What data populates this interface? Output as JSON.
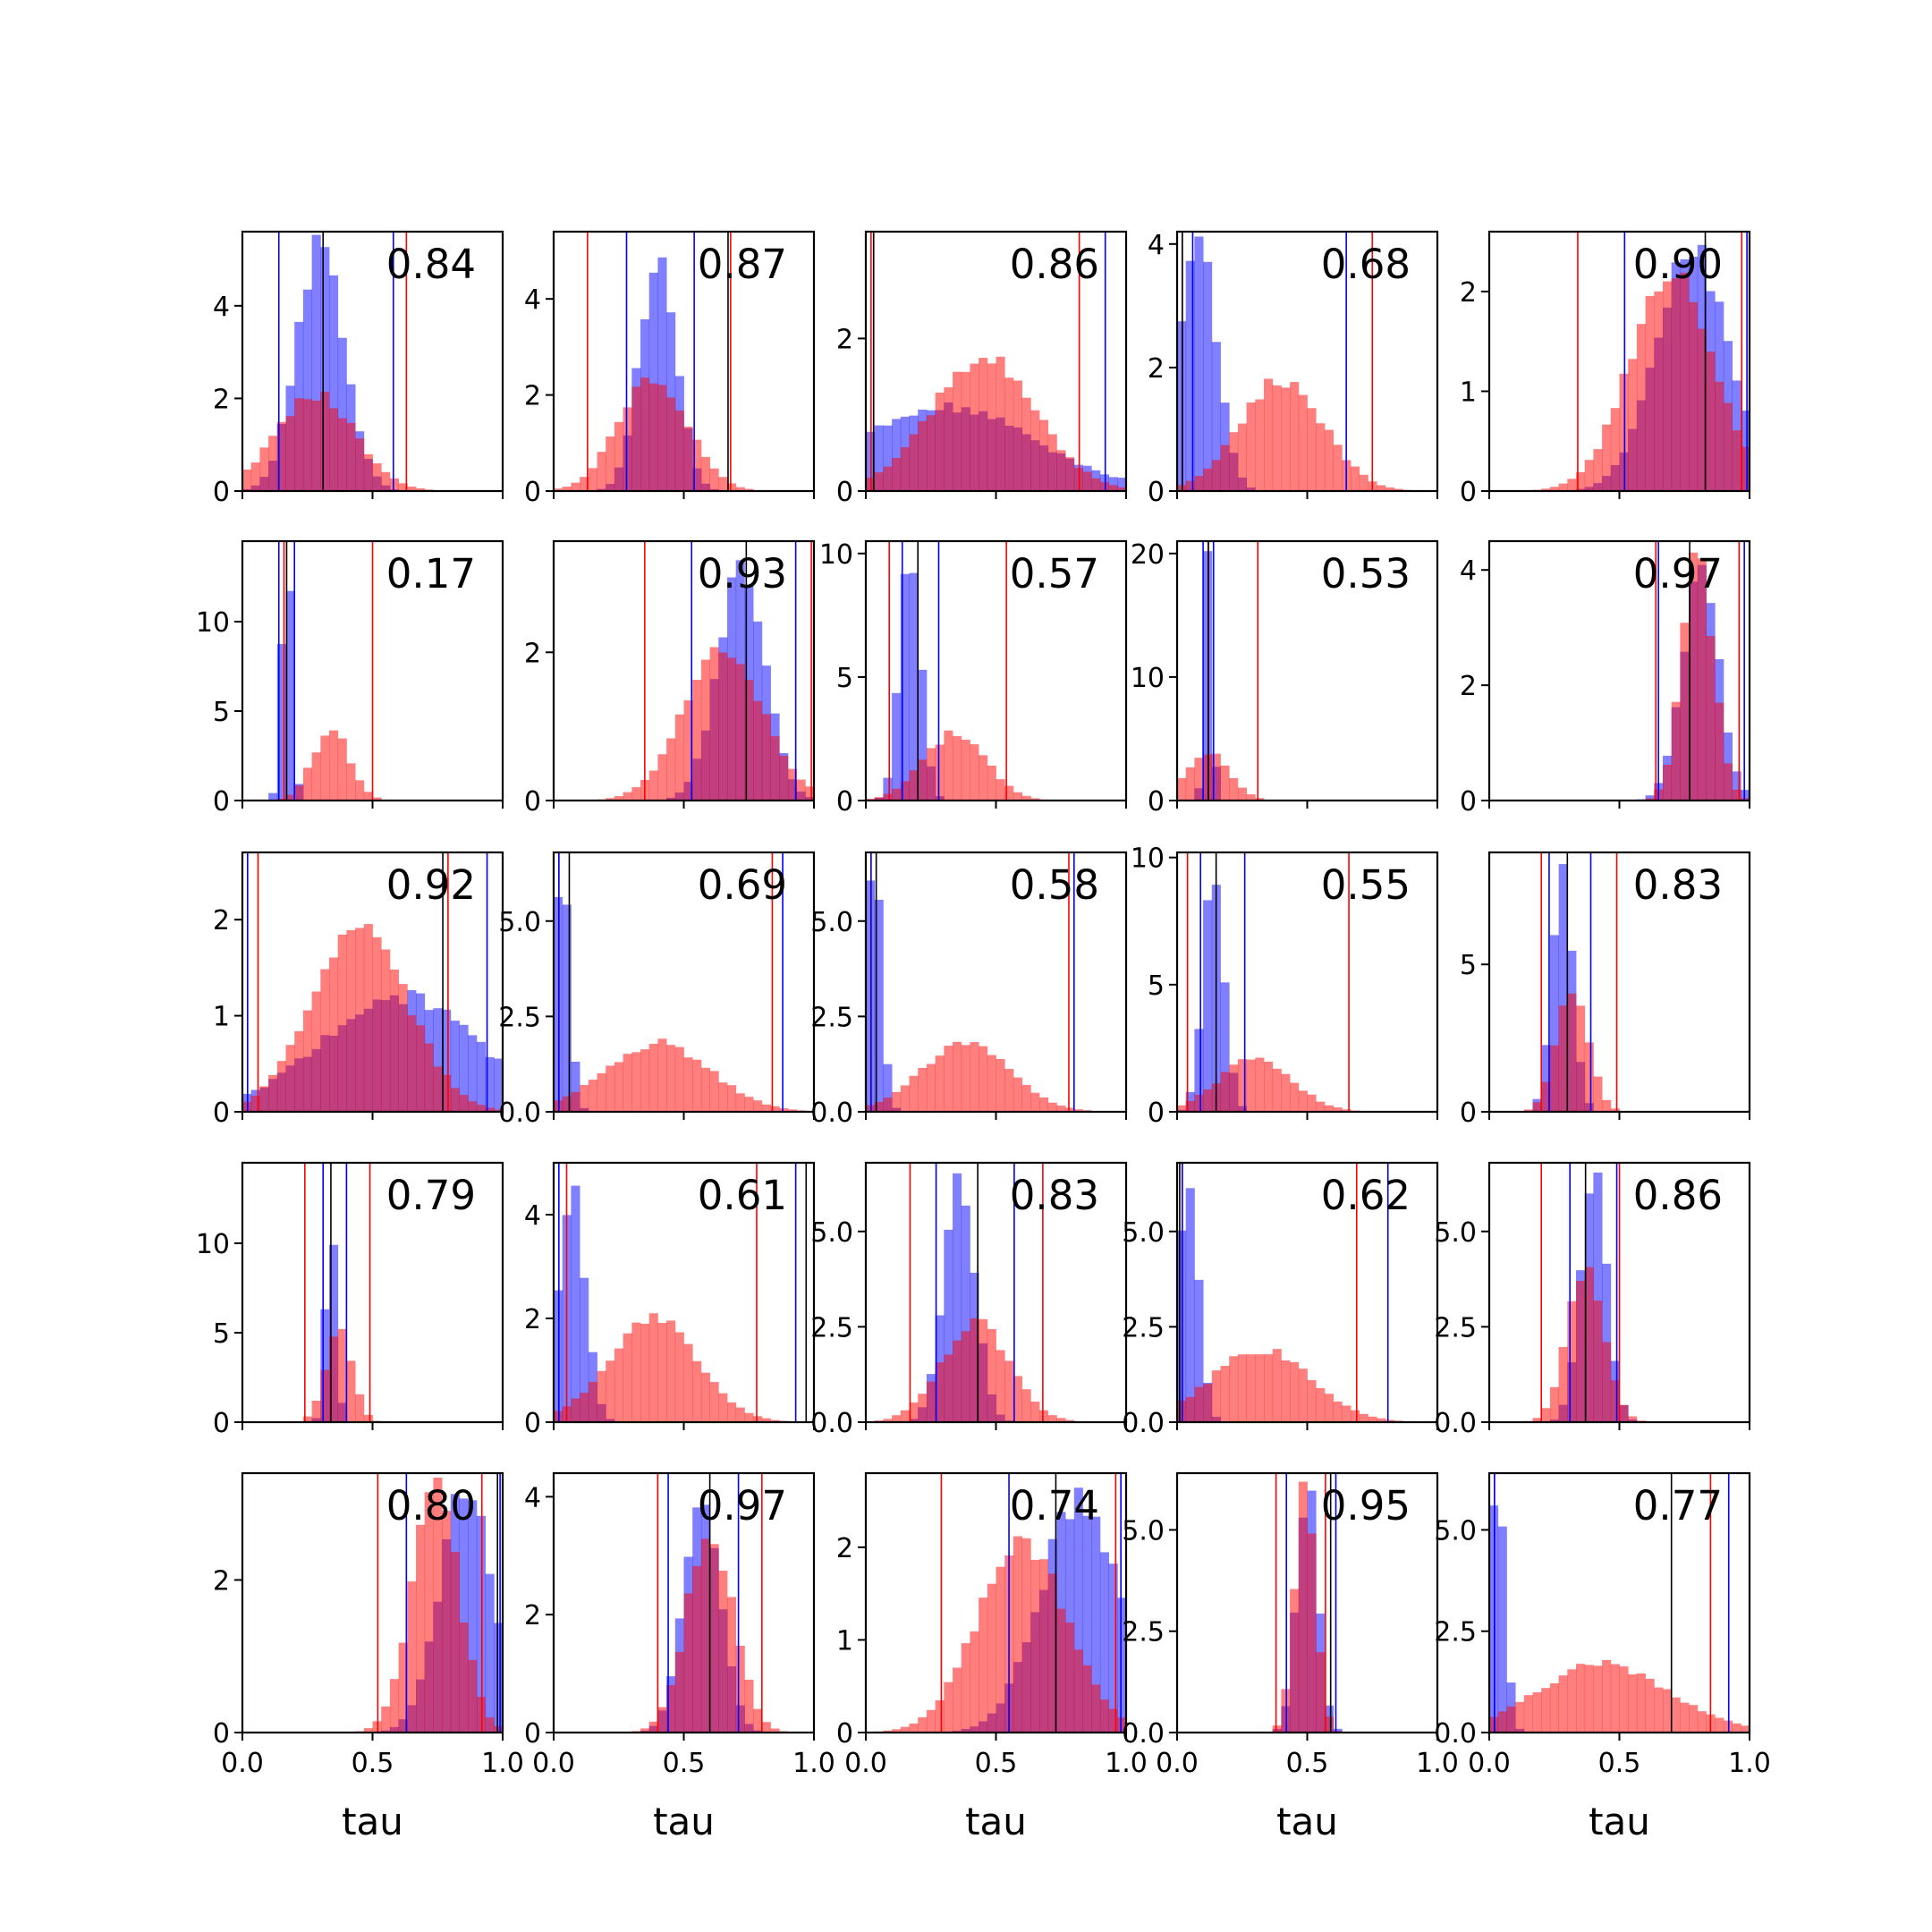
{
  "figure": {
    "colors": {
      "prior": "#ff0000",
      "posterior": "#0000ff",
      "truth": "#000000",
      "overlap": "#bf4080"
    }
  },
  "chart_data": [
    {
      "type": "bar",
      "annotation": "0.84",
      "ylim": [
        0,
        5.6
      ],
      "yticks": [
        0,
        2,
        4
      ],
      "ytick_labels": [
        "0",
        "2",
        "4"
      ],
      "xticks": [
        0,
        0.5,
        1
      ],
      "xtick_labels": [],
      "xlabel": "",
      "xlim": [
        0,
        1
      ],
      "truth": 0.31,
      "blue_lines": [
        0.14,
        0.58
      ],
      "red_lines": [
        0.0,
        0.63
      ],
      "blue_peak": 0.3,
      "blue_width": 0.09,
      "red_peak": 0.28,
      "red_width": 0.15,
      "blue_max": 5.45,
      "red_max": 2.1
    },
    {
      "type": "bar",
      "annotation": "0.87",
      "ylim": [
        0,
        5.4
      ],
      "yticks": [
        0,
        2,
        4
      ],
      "ytick_labels": [
        "0",
        "2",
        "4"
      ],
      "xticks": [
        0,
        0.5,
        1
      ],
      "xtick_labels": [],
      "xlabel": "",
      "xlim": [
        0,
        1
      ],
      "truth": 0.67,
      "blue_lines": [
        0.28,
        0.54
      ],
      "red_lines": [
        0.13,
        0.68
      ],
      "blue_peak": 0.4,
      "blue_width": 0.07,
      "red_peak": 0.38,
      "red_width": 0.13,
      "blue_max": 4.9,
      "red_max": 2.4
    },
    {
      "type": "bar",
      "annotation": "0.86",
      "ylim": [
        0,
        3.4
      ],
      "yticks": [
        0,
        2
      ],
      "ytick_labels": [
        "0",
        "2"
      ],
      "xticks": [
        0,
        0.5,
        1
      ],
      "xtick_labels": [],
      "xlabel": "",
      "xlim": [
        0,
        1
      ],
      "truth": 0.03,
      "blue_lines": [
        0.03,
        0.92
      ],
      "red_lines": [
        0.02,
        0.82
      ],
      "blue_peak": 0.3,
      "blue_width": 0.35,
      "red_peak": 0.45,
      "red_width": 0.2,
      "blue_max": 1.1,
      "red_max": 1.75
    },
    {
      "type": "bar",
      "annotation": "0.68",
      "ylim": [
        0,
        4.2
      ],
      "yticks": [
        0,
        2,
        4
      ],
      "ytick_labels": [
        "0",
        "2",
        "4"
      ],
      "xticks": [
        0,
        0.5,
        1
      ],
      "xtick_labels": [],
      "xlabel": "",
      "xlim": [
        0,
        1
      ],
      "truth": 0.02,
      "blue_lines": [
        0.06,
        0.65
      ],
      "red_lines": [
        0.02,
        0.75
      ],
      "blue_peak": 0.08,
      "blue_width": 0.07,
      "red_peak": 0.4,
      "red_width": 0.16,
      "blue_max": 4.0,
      "red_max": 1.8
    },
    {
      "type": "bar",
      "annotation": "0.90",
      "ylim": [
        0,
        2.6
      ],
      "yticks": [
        0,
        1,
        2
      ],
      "ytick_labels": [
        "0",
        "1",
        "2"
      ],
      "xticks": [
        0,
        0.5,
        1
      ],
      "xtick_labels": [],
      "xlabel": "",
      "xlim": [
        0,
        1
      ],
      "truth": 0.83,
      "blue_lines": [
        0.52,
        0.99
      ],
      "red_lines": [
        0.34,
        0.97
      ],
      "blue_peak": 0.78,
      "blue_width": 0.14,
      "red_peak": 0.7,
      "red_width": 0.16,
      "blue_max": 2.4,
      "red_max": 2.15
    },
    {
      "type": "bar",
      "annotation": "0.17",
      "ylim": [
        0,
        14.5
      ],
      "yticks": [
        0,
        5,
        10
      ],
      "ytick_labels": [
        "0",
        "5",
        "10"
      ],
      "xticks": [
        0,
        0.5,
        1
      ],
      "xtick_labels": [],
      "xlabel": "",
      "xlim": [
        0,
        1
      ],
      "truth": 0.17,
      "blue_lines": [
        0.14,
        0.2
      ],
      "red_lines": [
        0.16,
        0.5
      ],
      "blue_peak": 0.17,
      "blue_width": 0.02,
      "red_peak": 0.34,
      "red_width": 0.07,
      "blue_max": 14.0,
      "red_max": 4.0
    },
    {
      "type": "bar",
      "annotation": "0.93",
      "ylim": [
        0,
        3.5
      ],
      "yticks": [
        0,
        2
      ],
      "ytick_labels": [
        "0",
        "2"
      ],
      "xticks": [
        0,
        0.5,
        1
      ],
      "xtick_labels": [],
      "xlabel": "",
      "xlim": [
        0,
        1
      ],
      "truth": 0.74,
      "blue_lines": [
        0.53,
        0.93
      ],
      "red_lines": [
        0.35,
        0.99
      ],
      "blue_peak": 0.72,
      "blue_width": 0.09,
      "red_peak": 0.65,
      "red_width": 0.15,
      "blue_max": 3.2,
      "red_max": 2.1
    },
    {
      "type": "bar",
      "annotation": "0.57",
      "ylim": [
        0,
        10.5
      ],
      "yticks": [
        0,
        5,
        10
      ],
      "ytick_labels": [
        "0",
        "5",
        "10"
      ],
      "xticks": [
        0,
        0.5,
        1
      ],
      "xtick_labels": [],
      "xlabel": "",
      "xlim": [
        0,
        1
      ],
      "truth": 0.2,
      "blue_lines": [
        0.14,
        0.28
      ],
      "red_lines": [
        0.09,
        0.54
      ],
      "blue_peak": 0.17,
      "blue_width": 0.04,
      "red_peak": 0.34,
      "red_width": 0.12,
      "blue_max": 10.0,
      "red_max": 2.7
    },
    {
      "type": "bar",
      "annotation": "0.53",
      "ylim": [
        0,
        21
      ],
      "yticks": [
        0,
        10,
        20
      ],
      "ytick_labels": [
        "0",
        "10",
        "20"
      ],
      "xticks": [
        0,
        0.5,
        1
      ],
      "xtick_labels": [],
      "xlabel": "",
      "xlim": [
        0,
        1
      ],
      "truth": 0.12,
      "blue_lines": [
        0.1,
        0.14
      ],
      "red_lines": [
        0.12,
        0.31
      ],
      "blue_peak": 0.12,
      "blue_width": 0.015,
      "red_peak": 0.12,
      "red_width": 0.08,
      "blue_max": 20.0,
      "red_max": 4.0
    },
    {
      "type": "bar",
      "annotation": "0.97",
      "ylim": [
        0,
        4.5
      ],
      "yticks": [
        0,
        2,
        4
      ],
      "ytick_labels": [
        "0",
        "2",
        "4"
      ],
      "xticks": [
        0,
        0.5,
        1
      ],
      "xtick_labels": [],
      "xlabel": "",
      "xlim": [
        0,
        1
      ],
      "truth": 0.77,
      "blue_lines": [
        0.65,
        0.98
      ],
      "red_lines": [
        0.64,
        0.96
      ],
      "blue_peak": 0.81,
      "blue_width": 0.07,
      "red_peak": 0.8,
      "red_width": 0.06,
      "blue_max": 4.0,
      "red_max": 4.2
    },
    {
      "type": "bar",
      "annotation": "0.92",
      "ylim": [
        0,
        2.7
      ],
      "yticks": [
        0,
        1,
        2
      ],
      "ytick_labels": [
        "0",
        "1",
        "2"
      ],
      "xticks": [
        0,
        0.5,
        1
      ],
      "xtick_labels": [],
      "xlabel": "",
      "xlim": [
        0,
        1
      ],
      "truth": 0.77,
      "blue_lines": [
        0.02,
        0.94
      ],
      "red_lines": [
        0.06,
        0.79
      ],
      "blue_peak": 0.6,
      "blue_width": 0.3,
      "red_peak": 0.45,
      "red_width": 0.18,
      "blue_max": 1.2,
      "red_max": 2.0
    },
    {
      "type": "bar",
      "annotation": "0.69",
      "ylim": [
        0,
        6.8
      ],
      "yticks": [
        0,
        2.5,
        5.0
      ],
      "ytick_labels": [
        "0.0",
        "2.5",
        "5.0"
      ],
      "xticks": [
        0,
        0.5,
        1
      ],
      "xtick_labels": [],
      "xlabel": "",
      "xlim": [
        0,
        1
      ],
      "truth": 0.06,
      "blue_lines": [
        0.02,
        0.88
      ],
      "red_lines": [
        0.02,
        0.84
      ],
      "blue_peak": 0.03,
      "blue_width": 0.03,
      "red_peak": 0.4,
      "red_width": 0.2,
      "blue_max": 6.5,
      "red_max": 1.8
    },
    {
      "type": "bar",
      "annotation": "0.58",
      "ylim": [
        0,
        6.8
      ],
      "yticks": [
        0,
        2.5,
        5.0
      ],
      "ytick_labels": [
        "0.0",
        "2.5",
        "5.0"
      ],
      "xticks": [
        0,
        0.5,
        1
      ],
      "xtick_labels": [],
      "xlabel": "",
      "xlim": [
        0,
        1
      ],
      "truth": 0.04,
      "blue_lines": [
        0.02,
        0.8
      ],
      "red_lines": [
        0.02,
        0.78
      ],
      "blue_peak": 0.03,
      "blue_width": 0.03,
      "red_peak": 0.38,
      "red_width": 0.17,
      "blue_max": 6.5,
      "red_max": 1.8
    },
    {
      "type": "bar",
      "annotation": "0.55",
      "ylim": [
        0,
        10.2
      ],
      "yticks": [
        0,
        5,
        10
      ],
      "ytick_labels": [
        "0",
        "5",
        "10"
      ],
      "xticks": [
        0,
        0.5,
        1
      ],
      "xtick_labels": [],
      "xlabel": "",
      "xlim": [
        0,
        1
      ],
      "truth": 0.15,
      "blue_lines": [
        0.09,
        0.26
      ],
      "red_lines": [
        0.04,
        0.66
      ],
      "blue_peak": 0.14,
      "blue_width": 0.04,
      "red_peak": 0.3,
      "red_width": 0.14,
      "blue_max": 9.5,
      "red_max": 2.1
    },
    {
      "type": "bar",
      "annotation": "0.83",
      "ylim": [
        0,
        8.8
      ],
      "yticks": [
        0,
        5
      ],
      "ytick_labels": [
        "0",
        "5"
      ],
      "xticks": [
        0,
        0.5,
        1
      ],
      "xtick_labels": [],
      "xlabel": "",
      "xlim": [
        0,
        1
      ],
      "truth": 0.3,
      "blue_lines": [
        0.23,
        0.39
      ],
      "red_lines": [
        0.2,
        0.49
      ],
      "blue_peak": 0.28,
      "blue_width": 0.04,
      "red_peak": 0.32,
      "red_width": 0.06,
      "blue_max": 8.0,
      "red_max": 4.3
    },
    {
      "type": "bar",
      "annotation": "0.79",
      "ylim": [
        0,
        14.5
      ],
      "yticks": [
        0,
        5,
        10
      ],
      "ytick_labels": [
        "0",
        "5",
        "10"
      ],
      "xticks": [
        0,
        0.5,
        1
      ],
      "xtick_labels": [],
      "xlabel": "",
      "xlim": [
        0,
        1
      ],
      "truth": 0.34,
      "blue_lines": [
        0.31,
        0.4
      ],
      "red_lines": [
        0.24,
        0.49
      ],
      "blue_peak": 0.34,
      "blue_width": 0.02,
      "red_peak": 0.37,
      "red_width": 0.05,
      "blue_max": 12.0,
      "red_max": 5.5
    },
    {
      "type": "bar",
      "annotation": "0.61",
      "ylim": [
        0,
        5.0
      ],
      "yticks": [
        0,
        2,
        4
      ],
      "ytick_labels": [
        "0",
        "2",
        "4"
      ],
      "xticks": [
        0,
        0.5,
        1
      ],
      "xtick_labels": [],
      "xlabel": "",
      "xlim": [
        0,
        1
      ],
      "truth": 0.97,
      "blue_lines": [
        0.02,
        0.93
      ],
      "red_lines": [
        0.05,
        0.78
      ],
      "blue_peak": 0.07,
      "blue_width": 0.05,
      "red_peak": 0.38,
      "red_width": 0.17,
      "blue_max": 4.6,
      "red_max": 2.0
    },
    {
      "type": "bar",
      "annotation": "0.83",
      "ylim": [
        0,
        6.8
      ],
      "yticks": [
        0,
        2.5,
        5.0
      ],
      "ytick_labels": [
        "0.0",
        "2.5",
        "5.0"
      ],
      "xticks": [
        0,
        0.5,
        1
      ],
      "xtick_labels": [],
      "xlabel": "",
      "xlim": [
        0,
        1
      ],
      "truth": 0.43,
      "blue_lines": [
        0.27,
        0.57
      ],
      "red_lines": [
        0.17,
        0.68
      ],
      "blue_peak": 0.36,
      "blue_width": 0.06,
      "red_peak": 0.42,
      "red_width": 0.13,
      "blue_max": 6.4,
      "red_max": 2.6
    },
    {
      "type": "bar",
      "annotation": "0.62",
      "ylim": [
        0,
        6.8
      ],
      "yticks": [
        0,
        2.5,
        5.0
      ],
      "ytick_labels": [
        "0.0",
        "2.5",
        "5.0"
      ],
      "xticks": [
        0,
        0.5,
        1
      ],
      "xtick_labels": [],
      "xlabel": "",
      "xlim": [
        0,
        1
      ],
      "truth": 0.01,
      "blue_lines": [
        0.02,
        0.81
      ],
      "red_lines": [
        0.02,
        0.69
      ],
      "blue_peak": 0.04,
      "blue_width": 0.04,
      "red_peak": 0.32,
      "red_width": 0.19,
      "blue_max": 6.4,
      "red_max": 1.9
    },
    {
      "type": "bar",
      "annotation": "0.86",
      "ylim": [
        0,
        6.8
      ],
      "yticks": [
        0,
        2.5,
        5.0
      ],
      "ytick_labels": [
        "0.0",
        "2.5",
        "5.0"
      ],
      "xticks": [
        0,
        0.5,
        1
      ],
      "xtick_labels": [],
      "xlabel": "",
      "xlim": [
        0,
        1
      ],
      "truth": 0.37,
      "blue_lines": [
        0.31,
        0.49
      ],
      "red_lines": [
        0.2,
        0.5
      ],
      "blue_peak": 0.4,
      "blue_width": 0.05,
      "red_peak": 0.37,
      "red_width": 0.07,
      "blue_max": 6.5,
      "red_max": 4.1
    },
    {
      "type": "bar",
      "annotation": "0.80",
      "ylim": [
        0,
        3.4
      ],
      "yticks": [
        0,
        2
      ],
      "ytick_labels": [
        "0",
        "2"
      ],
      "xticks": [
        0,
        0.5,
        1
      ],
      "xtick_labels": [
        "0.0",
        "0.5",
        "1.0"
      ],
      "xlabel": "tau",
      "xlim": [
        0,
        1
      ],
      "truth": 0.98,
      "blue_lines": [
        0.63,
        0.99
      ],
      "red_lines": [
        0.52,
        0.92
      ],
      "blue_peak": 0.86,
      "blue_width": 0.1,
      "red_peak": 0.74,
      "red_width": 0.09,
      "blue_max": 3.3,
      "red_max": 3.2
    },
    {
      "type": "bar",
      "annotation": "0.97",
      "ylim": [
        0,
        4.4
      ],
      "yticks": [
        0,
        2,
        4
      ],
      "ytick_labels": [
        "0",
        "2",
        "4"
      ],
      "xticks": [
        0,
        0.5,
        1
      ],
      "xtick_labels": [
        "0.0",
        "0.5",
        "1.0"
      ],
      "xlabel": "tau",
      "xlim": [
        0,
        1
      ],
      "truth": 0.6,
      "blue_lines": [
        0.44,
        0.71
      ],
      "red_lines": [
        0.4,
        0.8
      ],
      "blue_peak": 0.57,
      "blue_width": 0.07,
      "red_peak": 0.6,
      "red_width": 0.09,
      "blue_max": 4.0,
      "red_max": 3.4
    },
    {
      "type": "bar",
      "annotation": "0.74",
      "ylim": [
        0,
        2.8
      ],
      "yticks": [
        0,
        1,
        2
      ],
      "ytick_labels": [
        "0",
        "1",
        "2"
      ],
      "xticks": [
        0,
        0.5,
        1
      ],
      "xtick_labels": [
        "0.0",
        "0.5",
        "1.0"
      ],
      "xlabel": "tau",
      "xlim": [
        0,
        1
      ],
      "truth": 0.73,
      "blue_lines": [
        0.55,
        0.98
      ],
      "red_lines": [
        0.29,
        0.96
      ],
      "blue_peak": 0.82,
      "blue_width": 0.15,
      "red_peak": 0.6,
      "red_width": 0.17,
      "blue_max": 2.5,
      "red_max": 2.05
    },
    {
      "type": "bar",
      "annotation": "0.95",
      "ylim": [
        0,
        6.4
      ],
      "yticks": [
        0,
        2.5,
        5.0
      ],
      "ytick_labels": [
        "0.0",
        "2.5",
        "5.0"
      ],
      "xticks": [
        0,
        0.5,
        1
      ],
      "xtick_labels": [
        "0.0",
        "0.5",
        "1.0"
      ],
      "xlabel": "tau",
      "xlim": [
        0,
        1
      ],
      "truth": 0.59,
      "blue_lines": [
        0.42,
        0.61
      ],
      "red_lines": [
        0.38,
        0.57
      ],
      "blue_peak": 0.5,
      "blue_width": 0.04,
      "red_peak": 0.49,
      "red_width": 0.04,
      "blue_max": 6.1,
      "red_max": 6.0
    },
    {
      "type": "bar",
      "annotation": "0.77",
      "ylim": [
        0,
        6.4
      ],
      "yticks": [
        0,
        2.5,
        5.0
      ],
      "ytick_labels": [
        "0.0",
        "2.5",
        "5.0"
      ],
      "xticks": [
        0,
        0.5,
        1
      ],
      "xtick_labels": [
        "0.0",
        "0.5",
        "1.0"
      ],
      "xlabel": "tau",
      "xlim": [
        0,
        1
      ],
      "truth": 0.7,
      "blue_lines": [
        0.02,
        0.92
      ],
      "red_lines": [
        0.02,
        0.85
      ],
      "blue_peak": 0.03,
      "blue_width": 0.03,
      "red_peak": 0.44,
      "red_width": 0.25,
      "blue_max": 6.1,
      "red_max": 1.7
    }
  ]
}
